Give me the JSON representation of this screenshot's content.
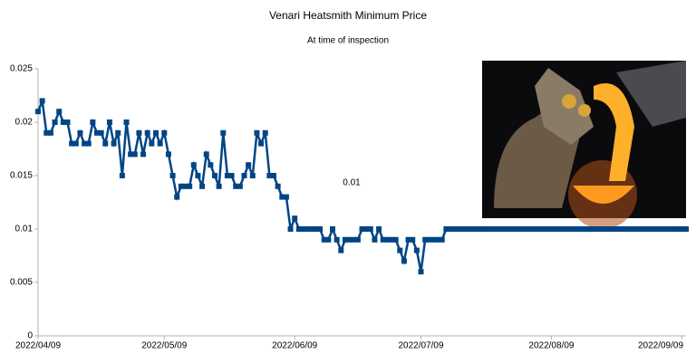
{
  "chart_data": {
    "type": "line",
    "title": "Venari Heatsmith Minimum Price",
    "subtitle": "At time of inspection",
    "annotation": "0.01",
    "x": [
      "2022/04/09",
      "2022/04/10",
      "2022/04/11",
      "2022/04/12",
      "2022/04/13",
      "2022/04/14",
      "2022/04/15",
      "2022/04/16",
      "2022/04/17",
      "2022/04/18",
      "2022/04/19",
      "2022/04/20",
      "2022/04/21",
      "2022/04/22",
      "2022/04/23",
      "2022/04/24",
      "2022/04/25",
      "2022/04/26",
      "2022/04/27",
      "2022/04/28",
      "2022/04/29",
      "2022/04/30",
      "2022/05/01",
      "2022/05/02",
      "2022/05/03",
      "2022/05/04",
      "2022/05/05",
      "2022/05/06",
      "2022/05/07",
      "2022/05/08",
      "2022/05/09",
      "2022/05/10",
      "2022/05/11",
      "2022/05/12",
      "2022/05/13",
      "2022/05/14",
      "2022/05/15",
      "2022/05/16",
      "2022/05/17",
      "2022/05/18",
      "2022/05/19",
      "2022/05/20",
      "2022/05/21",
      "2022/05/22",
      "2022/05/23",
      "2022/05/24",
      "2022/05/25",
      "2022/05/26",
      "2022/05/27",
      "2022/05/28",
      "2022/05/29",
      "2022/05/30",
      "2022/05/31",
      "2022/06/01",
      "2022/06/02",
      "2022/06/03",
      "2022/06/04",
      "2022/06/05",
      "2022/06/06",
      "2022/06/07",
      "2022/06/08",
      "2022/06/09",
      "2022/06/10",
      "2022/06/11",
      "2022/06/12",
      "2022/06/13",
      "2022/06/14",
      "2022/06/15",
      "2022/06/16",
      "2022/06/17",
      "2022/06/18",
      "2022/06/19",
      "2022/06/20",
      "2022/06/21",
      "2022/06/22",
      "2022/06/23",
      "2022/06/24",
      "2022/06/25",
      "2022/06/26",
      "2022/06/27",
      "2022/06/28",
      "2022/06/29",
      "2022/06/30",
      "2022/07/01",
      "2022/07/02",
      "2022/07/03",
      "2022/07/04",
      "2022/07/05",
      "2022/07/06",
      "2022/07/07",
      "2022/07/08",
      "2022/07/09",
      "2022/07/10",
      "2022/07/11",
      "2022/07/12",
      "2022/07/13",
      "2022/07/14",
      "2022/07/15",
      "2022/07/16",
      "2022/07/17",
      "2022/07/18",
      "2022/07/19",
      "2022/07/20",
      "2022/07/21",
      "2022/07/22",
      "2022/07/23",
      "2022/07/24",
      "2022/07/25",
      "2022/07/26",
      "2022/07/27",
      "2022/07/28",
      "2022/07/29",
      "2022/07/30",
      "2022/07/31",
      "2022/08/01",
      "2022/08/02",
      "2022/08/03",
      "2022/08/04",
      "2022/08/05",
      "2022/08/06",
      "2022/08/07",
      "2022/08/08",
      "2022/08/09",
      "2022/08/10",
      "2022/08/11",
      "2022/08/12",
      "2022/08/13",
      "2022/08/14",
      "2022/08/15",
      "2022/08/16",
      "2022/08/17",
      "2022/08/18",
      "2022/08/19",
      "2022/08/20",
      "2022/08/21",
      "2022/08/22",
      "2022/08/23",
      "2022/08/24",
      "2022/08/25",
      "2022/08/26",
      "2022/08/27",
      "2022/08/28",
      "2022/08/29",
      "2022/08/30",
      "2022/08/31",
      "2022/09/01",
      "2022/09/02",
      "2022/09/03",
      "2022/09/04",
      "2022/09/05",
      "2022/09/06",
      "2022/09/07",
      "2022/09/08",
      "2022/09/09",
      "2022/09/10"
    ],
    "series": [
      {
        "color": "#004586",
        "values": [
          0.021,
          0.022,
          0.019,
          0.019,
          0.02,
          0.021,
          0.02,
          0.02,
          0.018,
          0.018,
          0.019,
          0.018,
          0.018,
          0.02,
          0.019,
          0.019,
          0.018,
          0.02,
          0.018,
          0.019,
          0.015,
          0.02,
          0.017,
          0.017,
          0.019,
          0.017,
          0.019,
          0.018,
          0.019,
          0.018,
          0.019,
          0.017,
          0.015,
          0.013,
          0.014,
          0.014,
          0.014,
          0.016,
          0.015,
          0.014,
          0.017,
          0.016,
          0.015,
          0.014,
          0.019,
          0.015,
          0.015,
          0.014,
          0.014,
          0.015,
          0.016,
          0.015,
          0.019,
          0.018,
          0.019,
          0.015,
          0.015,
          0.014,
          0.013,
          0.013,
          0.01,
          0.011,
          0.01,
          0.01,
          0.01,
          0.01,
          0.01,
          0.01,
          0.009,
          0.009,
          0.01,
          0.009,
          0.008,
          0.009,
          0.009,
          0.009,
          0.009,
          0.01,
          0.01,
          0.01,
          0.009,
          0.01,
          0.009,
          0.009,
          0.009,
          0.009,
          0.008,
          0.007,
          0.009,
          0.009,
          0.008,
          0.006,
          0.009,
          0.009,
          0.009,
          0.009,
          0.009,
          0.01,
          0.01,
          0.01,
          0.01,
          0.01,
          0.01,
          0.01,
          0.01,
          0.01,
          0.01,
          0.01,
          0.01,
          0.01,
          0.01,
          0.01,
          0.01,
          0.01,
          0.01,
          0.01,
          0.01,
          0.01,
          0.01,
          0.01,
          0.01,
          0.01,
          0.01,
          0.01,
          0.01,
          0.01,
          0.01,
          0.01,
          0.01,
          0.01,
          0.01,
          0.01,
          0.01,
          0.01,
          0.01,
          0.01,
          0.01,
          0.01,
          0.01,
          0.01,
          0.01,
          0.01,
          0.01,
          0.01,
          0.01,
          0.01,
          0.01,
          0.01,
          0.01,
          0.01,
          0.01,
          0.01,
          0.01,
          0.01,
          0.01
        ]
      }
    ],
    "xticks": [
      "2022/04/09",
      "2022/05/09",
      "2022/06/09",
      "2022/07/09",
      "2022/08/09",
      "2022/09/09"
    ],
    "ylim": [
      0,
      0.025
    ],
    "yticks": [
      0,
      0.005,
      0.01,
      0.015,
      0.02,
      0.025
    ],
    "grid": false
  }
}
